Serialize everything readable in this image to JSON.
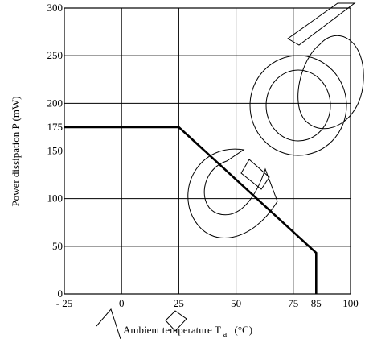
{
  "chart_data": {
    "type": "line",
    "title": "",
    "xlabel_main": "Ambient temperature T",
    "xlabel_sub": "a",
    "xlabel_unit": "(°C)",
    "ylabel": "Power dissipation P (mW)",
    "xlim": [
      -25,
      100
    ],
    "ylim": [
      0,
      300
    ],
    "x_ticks": [
      {
        "value": -25,
        "label": "- 25"
      },
      {
        "value": 0,
        "label": "0"
      },
      {
        "value": 25,
        "label": "25"
      },
      {
        "value": 50,
        "label": "50"
      },
      {
        "value": 75,
        "label": "75"
      },
      {
        "value": 85,
        "label": "85"
      },
      {
        "value": 100,
        "label": "100"
      }
    ],
    "y_ticks": [
      {
        "value": 0,
        "label": "0"
      },
      {
        "value": 50,
        "label": "50"
      },
      {
        "value": 100,
        "label": "100"
      },
      {
        "value": 150,
        "label": "150"
      },
      {
        "value": 175,
        "label": "175"
      },
      {
        "value": 200,
        "label": "200"
      },
      {
        "value": 250,
        "label": "250"
      },
      {
        "value": 300,
        "label": "300"
      }
    ],
    "x_gridlines": [
      0,
      25,
      50,
      75,
      100
    ],
    "y_gridlines": [
      50,
      100,
      150,
      200,
      250
    ],
    "grid": true,
    "legend": "none",
    "series": [
      {
        "x": [
          -25,
          25,
          85,
          85
        ],
        "y": [
          175,
          175,
          43,
          0
        ],
        "color": "#000000"
      }
    ]
  }
}
